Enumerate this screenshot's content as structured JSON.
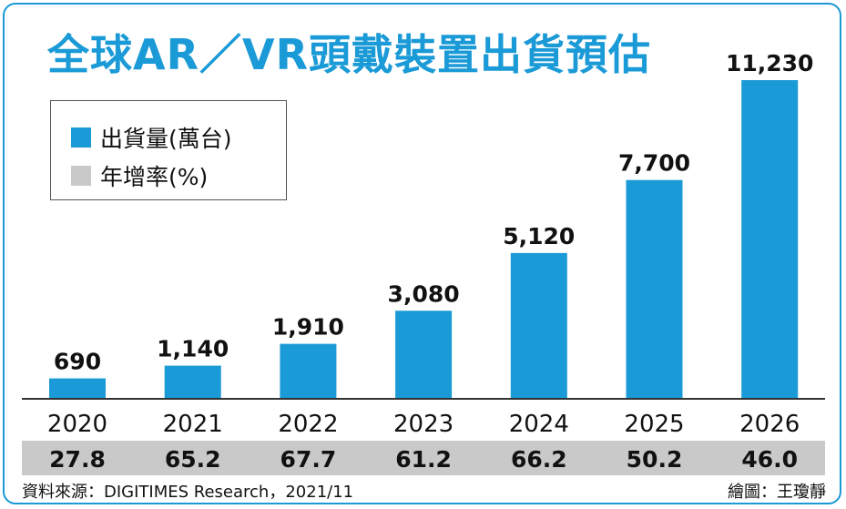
{
  "title": "全球AR／VR頭戴裝置出貨預估",
  "legend": {
    "items": [
      {
        "label": "出貨量(萬台)",
        "color": "#1a9ad6"
      },
      {
        "label": "年增率(%)",
        "color": "#c9c9c9"
      }
    ]
  },
  "chart_data": {
    "type": "bar",
    "categories": [
      "2020",
      "2021",
      "2022",
      "2023",
      "2024",
      "2025",
      "2026"
    ],
    "series": [
      {
        "name": "出貨量(萬台)",
        "values": [
          690,
          1140,
          1910,
          3080,
          5120,
          7700,
          11230
        ],
        "labels": [
          "690",
          "1,140",
          "1,910",
          "3,080",
          "5,120",
          "7,700",
          "11,230"
        ],
        "color": "#1a9ad6"
      },
      {
        "name": "年增率(%)",
        "values": [
          27.8,
          65.2,
          67.7,
          61.2,
          66.2,
          50.2,
          46.0
        ],
        "labels": [
          "27.8",
          "65.2",
          "67.7",
          "61.2",
          "66.2",
          "50.2",
          "46.0"
        ],
        "color": "#c9c9c9"
      }
    ],
    "ylim": [
      0,
      11230
    ],
    "grid": false,
    "legend_position": "top-left"
  },
  "footer": {
    "source": "資料來源：DIGITIMES Research，2021/11",
    "credit": "繪圖：王瓊靜"
  }
}
